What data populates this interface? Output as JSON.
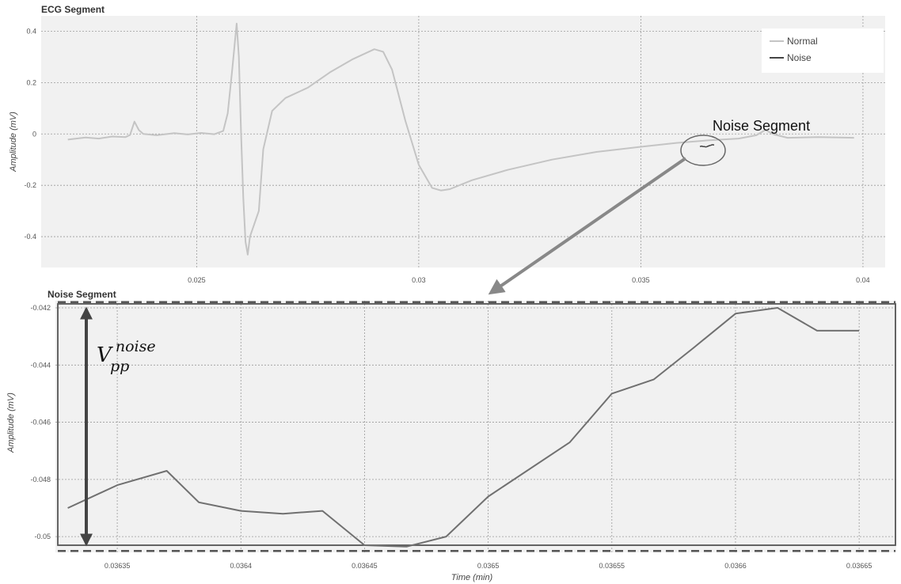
{
  "chart_data": [
    {
      "type": "line",
      "title": "ECG Segment",
      "ylabel": "Amplitude (mV)",
      "xlabel": "",
      "xlim": [
        0.0215,
        0.0405
      ],
      "ylim": [
        -0.52,
        0.46
      ],
      "x_ticks": [
        {
          "value": 0.025,
          "label": "0.025"
        },
        {
          "value": 0.03,
          "label": "0.03"
        },
        {
          "value": 0.035,
          "label": "0.035"
        },
        {
          "value": 0.04,
          "label": "0.04"
        }
      ],
      "y_ticks": [
        {
          "value": 0.4,
          "label": "0.4"
        },
        {
          "value": 0.2,
          "label": "0.2"
        },
        {
          "value": 0,
          "label": "0"
        },
        {
          "value": -0.2,
          "label": "-0.2"
        },
        {
          "value": -0.4,
          "label": "-0.4"
        }
      ],
      "grid": true,
      "legend_position": "top-right",
      "series": [
        {
          "name": "Normal",
          "color": "#c4c4c4",
          "points": [
            [
              0.0221,
              -0.022
            ],
            [
              0.0225,
              -0.014
            ],
            [
              0.0228,
              -0.018
            ],
            [
              0.0231,
              -0.01
            ],
            [
              0.0234,
              -0.012
            ],
            [
              0.0235,
              -0.004
            ],
            [
              0.0236,
              0.048
            ],
            [
              0.0237,
              0.015
            ],
            [
              0.0238,
              0.0
            ],
            [
              0.0241,
              -0.005
            ],
            [
              0.0245,
              0.003
            ],
            [
              0.0248,
              -0.002
            ],
            [
              0.0251,
              0.004
            ],
            [
              0.0254,
              -0.001
            ],
            [
              0.0256,
              0.012
            ],
            [
              0.0257,
              0.08
            ],
            [
              0.0258,
              0.25
            ],
            [
              0.0259,
              0.43
            ],
            [
              0.02595,
              0.3
            ],
            [
              0.026,
              0.0
            ],
            [
              0.02605,
              -0.25
            ],
            [
              0.0261,
              -0.42
            ],
            [
              0.02615,
              -0.47
            ],
            [
              0.0262,
              -0.4
            ],
            [
              0.0264,
              -0.3
            ],
            [
              0.0265,
              -0.06
            ],
            [
              0.0267,
              0.09
            ],
            [
              0.027,
              0.14
            ],
            [
              0.0275,
              0.18
            ],
            [
              0.028,
              0.24
            ],
            [
              0.0285,
              0.29
            ],
            [
              0.029,
              0.33
            ],
            [
              0.0292,
              0.32
            ],
            [
              0.0294,
              0.25
            ],
            [
              0.0297,
              0.05
            ],
            [
              0.03,
              -0.12
            ],
            [
              0.0303,
              -0.21
            ],
            [
              0.0305,
              -0.22
            ],
            [
              0.0307,
              -0.215
            ],
            [
              0.0312,
              -0.18
            ],
            [
              0.032,
              -0.14
            ],
            [
              0.033,
              -0.1
            ],
            [
              0.034,
              -0.07
            ],
            [
              0.035,
              -0.05
            ],
            [
              0.0358,
              -0.035
            ],
            [
              0.0365,
              -0.025
            ],
            [
              0.0372,
              -0.018
            ],
            [
              0.0376,
              -0.005
            ],
            [
              0.0378,
              0.015
            ],
            [
              0.038,
              -0.002
            ],
            [
              0.0383,
              -0.015
            ],
            [
              0.039,
              -0.012
            ],
            [
              0.0398,
              -0.015
            ]
          ]
        },
        {
          "name": "Noise",
          "color": "#444444",
          "points": [
            [
              0.03633,
              -0.049
            ],
            [
              0.03635,
              -0.0482
            ],
            [
              0.03637,
              -0.0477
            ],
            [
              0.0364,
              -0.0491
            ],
            [
              0.03643,
              -0.0491
            ],
            [
              0.03645,
              -0.0503
            ],
            [
              0.03648,
              -0.05
            ],
            [
              0.0365,
              -0.0486
            ],
            [
              0.03655,
              -0.045
            ],
            [
              0.03657,
              -0.0445
            ],
            [
              0.0366,
              -0.0422
            ],
            [
              0.03662,
              -0.042
            ],
            [
              0.03665,
              -0.0428
            ]
          ]
        }
      ],
      "annotations": [
        "Noise Segment"
      ]
    },
    {
      "type": "line",
      "title": "Noise Segment",
      "xlabel": "Time (min)",
      "ylabel": "Amplitude (mV)",
      "xlim": [
        0.036325,
        0.036665
      ],
      "ylim": [
        -0.05055,
        -0.04175
      ],
      "x_ticks": [
        {
          "value": 0.03635,
          "label": "0.03635"
        },
        {
          "value": 0.0364,
          "label": "0.0364"
        },
        {
          "value": 0.03645,
          "label": "0.03645"
        },
        {
          "value": 0.0365,
          "label": "0.0365"
        },
        {
          "value": 0.03655,
          "label": "0.03655"
        },
        {
          "value": 0.0366,
          "label": "0.0366"
        },
        {
          "value": 0.03665,
          "label": "0.03665"
        }
      ],
      "y_ticks": [
        {
          "value": -0.042,
          "label": "-0.042"
        },
        {
          "value": -0.044,
          "label": "-0.044"
        },
        {
          "value": -0.046,
          "label": "-0.046"
        },
        {
          "value": -0.048,
          "label": "-0.048"
        },
        {
          "value": -0.05,
          "label": "-0.05"
        }
      ],
      "grid": true,
      "series": [
        {
          "color": "#707070",
          "points": [
            [
              0.03633,
              -0.049
            ],
            [
              0.03635,
              -0.0482
            ],
            [
              0.03637,
              -0.0477
            ],
            [
              0.036383,
              -0.0488
            ],
            [
              0.0364,
              -0.0491
            ],
            [
              0.036417,
              -0.0492
            ],
            [
              0.036433,
              -0.0491
            ],
            [
              0.03645,
              -0.0503
            ],
            [
              0.036467,
              -0.05035
            ],
            [
              0.036483,
              -0.05
            ],
            [
              0.0365,
              -0.0486
            ],
            [
              0.036533,
              -0.0467
            ],
            [
              0.03655,
              -0.045
            ],
            [
              0.036567,
              -0.0445
            ],
            [
              0.036583,
              -0.0434
            ],
            [
              0.0366,
              -0.0422
            ],
            [
              0.036617,
              -0.042
            ],
            [
              0.036633,
              -0.0428
            ],
            [
              0.03665,
              -0.0428
            ]
          ]
        }
      ],
      "reference_lines": [
        -0.0418,
        -0.0505
      ],
      "annotation": {
        "base": "V",
        "superscript": "noise",
        "subscript": "pp"
      }
    }
  ]
}
